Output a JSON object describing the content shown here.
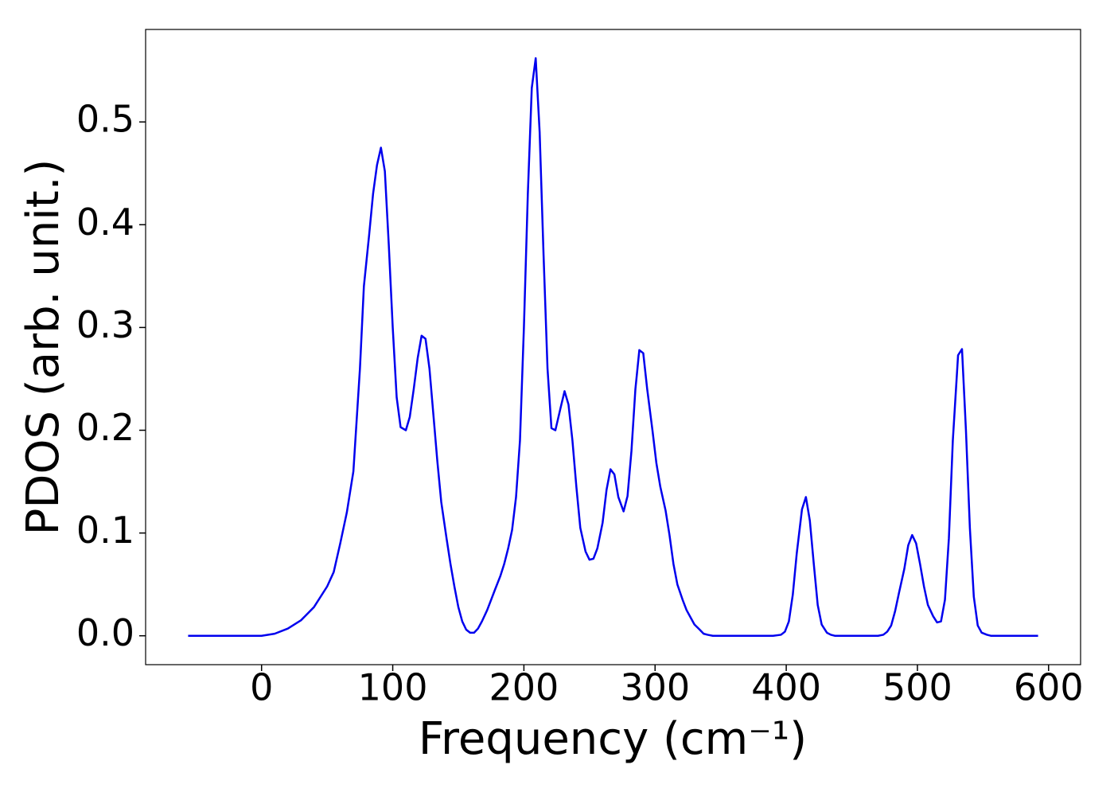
{
  "chart_data": {
    "type": "line",
    "xlabel": "Frequency (cm⁻¹)",
    "ylabel": "PDOS (arb. unit.)",
    "xlim": [
      -88.4,
      624.4
    ],
    "xticks": [
      0,
      100,
      200,
      300,
      400,
      500,
      600
    ],
    "ylim": [
      -0.0281,
      0.59
    ],
    "yticks": [
      {
        "value": 0,
        "label": "0.0"
      },
      0.1,
      0.2,
      0.3,
      0.4,
      0.5
    ],
    "x": [
      -56,
      0,
      10,
      20,
      30,
      40,
      50,
      55,
      60,
      65,
      70,
      75,
      78,
      82,
      85,
      88,
      91,
      94,
      97,
      100,
      103,
      106,
      110,
      113,
      116,
      119,
      122,
      125,
      128,
      131,
      134,
      137,
      141,
      144,
      147,
      150,
      153,
      156,
      159,
      162,
      165,
      168,
      172,
      175,
      178,
      182,
      185,
      188,
      191,
      194,
      197,
      200,
      203,
      206,
      209,
      212,
      215,
      218,
      221,
      224,
      228,
      231,
      234,
      237,
      240,
      243,
      247,
      250,
      253,
      256,
      260,
      263,
      266,
      269,
      272,
      276,
      279,
      282,
      285,
      288,
      291,
      294,
      298,
      301,
      304,
      308,
      311,
      314,
      317,
      321,
      324,
      327,
      330,
      334,
      337,
      340,
      344,
      390,
      396,
      399,
      402,
      405,
      408,
      412,
      415,
      418,
      421,
      424,
      427,
      431,
      434,
      437,
      470,
      474,
      477,
      480,
      483,
      486,
      490,
      493,
      496,
      499,
      502,
      505,
      508,
      512,
      515,
      518,
      521,
      524,
      527,
      531,
      534,
      537,
      540,
      543,
      546,
      549,
      553,
      556,
      592
    ],
    "series": [
      {
        "color": "#0000ee",
        "values": [
          0,
          0,
          0.002,
          0.007,
          0.015,
          0.028,
          0.048,
          0.062,
          0.09,
          0.12,
          0.16,
          0.26,
          0.34,
          0.39,
          0.43,
          0.458,
          0.475,
          0.452,
          0.38,
          0.3,
          0.232,
          0.203,
          0.2,
          0.213,
          0.24,
          0.27,
          0.292,
          0.289,
          0.26,
          0.215,
          0.17,
          0.13,
          0.095,
          0.07,
          0.048,
          0.028,
          0.014,
          0.006,
          0.003,
          0.003,
          0.007,
          0.014,
          0.025,
          0.035,
          0.045,
          0.058,
          0.07,
          0.085,
          0.103,
          0.135,
          0.19,
          0.3,
          0.43,
          0.533,
          0.562,
          0.49,
          0.37,
          0.26,
          0.202,
          0.2,
          0.222,
          0.238,
          0.225,
          0.19,
          0.145,
          0.105,
          0.082,
          0.074,
          0.075,
          0.085,
          0.11,
          0.142,
          0.162,
          0.157,
          0.135,
          0.121,
          0.136,
          0.18,
          0.24,
          0.278,
          0.275,
          0.24,
          0.2,
          0.168,
          0.145,
          0.122,
          0.098,
          0.07,
          0.05,
          0.035,
          0.025,
          0.018,
          0.011,
          0.006,
          0.002,
          0.001,
          0,
          0,
          0.001,
          0.004,
          0.014,
          0.04,
          0.08,
          0.123,
          0.135,
          0.112,
          0.07,
          0.03,
          0.011,
          0.003,
          0.001,
          0,
          0,
          0.001,
          0.004,
          0.01,
          0.024,
          0.042,
          0.065,
          0.088,
          0.098,
          0.09,
          0.07,
          0.048,
          0.03,
          0.019,
          0.013,
          0.014,
          0.035,
          0.095,
          0.19,
          0.273,
          0.279,
          0.2,
          0.105,
          0.038,
          0.01,
          0.003,
          0.001,
          0,
          0
        ]
      }
    ]
  }
}
